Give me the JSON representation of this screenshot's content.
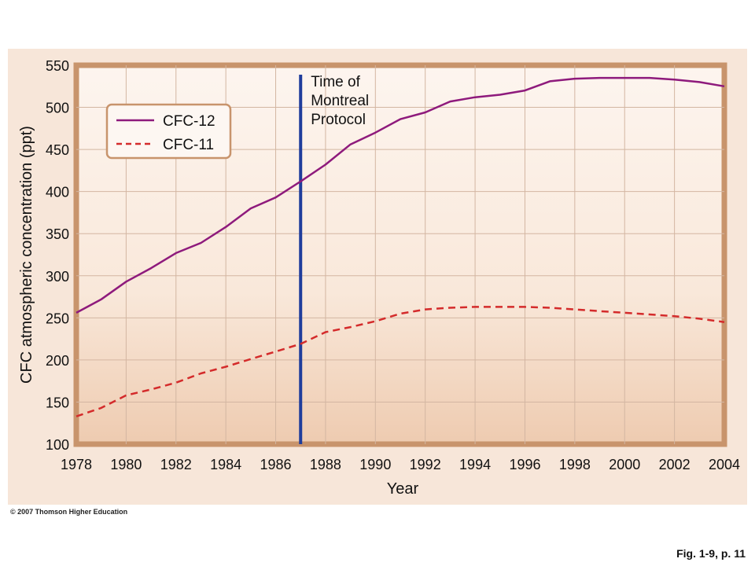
{
  "chart_data": {
    "type": "line",
    "xlabel": "Year",
    "ylabel": "CFC atmospheric concentration (ppt)",
    "xlim": [
      1978,
      2004
    ],
    "ylim": [
      100,
      550
    ],
    "x_ticks": [
      1978,
      1980,
      1982,
      1984,
      1986,
      1988,
      1990,
      1992,
      1994,
      1996,
      1998,
      2000,
      2002,
      2004
    ],
    "y_ticks": [
      100,
      150,
      200,
      250,
      300,
      350,
      400,
      450,
      500,
      550
    ],
    "grid": true,
    "legend_position": "top-left",
    "series": [
      {
        "name": "CFC-12",
        "color": "#8e1a7c",
        "style": "solid",
        "x": [
          1978,
          1979,
          1980,
          1981,
          1982,
          1983,
          1984,
          1985,
          1986,
          1987,
          1988,
          1989,
          1990,
          1991,
          1992,
          1993,
          1994,
          1995,
          1996,
          1997,
          1998,
          1999,
          2000,
          2001,
          2002,
          2003,
          2004
        ],
        "values": [
          256,
          272,
          293,
          309,
          327,
          339,
          358,
          380,
          393,
          412,
          432,
          456,
          470,
          486,
          494,
          507,
          512,
          515,
          520,
          531,
          534,
          535,
          535,
          535,
          533,
          530,
          525
        ]
      },
      {
        "name": "CFC-11",
        "color": "#d42b2b",
        "style": "dashed",
        "x": [
          1978,
          1979,
          1980,
          1981,
          1982,
          1983,
          1984,
          1985,
          1986,
          1987,
          1988,
          1989,
          1990,
          1991,
          1992,
          1993,
          1994,
          1995,
          1996,
          1997,
          1998,
          1999,
          2000,
          2001,
          2002,
          2003,
          2004
        ],
        "values": [
          133,
          143,
          158,
          165,
          173,
          184,
          192,
          201,
          210,
          219,
          233,
          239,
          246,
          255,
          260,
          262,
          263,
          263,
          263,
          262,
          260,
          258,
          256,
          254,
          252,
          249,
          245
        ]
      }
    ],
    "annotations": [
      {
        "type": "vertical-line",
        "x": 1987,
        "color": "#1f3d9c",
        "lines": [
          "Time of",
          "Montreal",
          "Protocol"
        ]
      }
    ]
  },
  "footer": {
    "copyright": "© 2007 Thomson Higher Education",
    "figure_ref": "Fig. 1-9, p. 11"
  }
}
